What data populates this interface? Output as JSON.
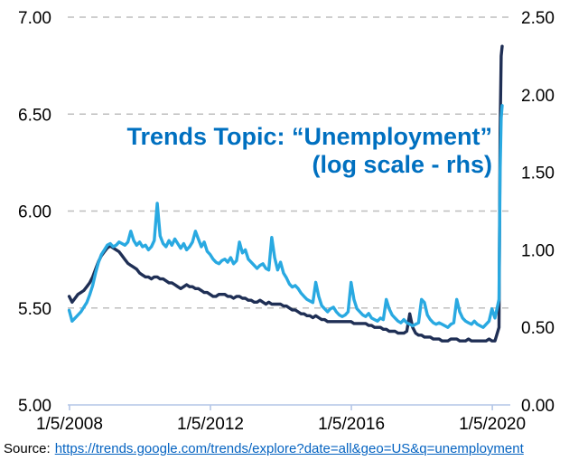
{
  "source_line": {
    "prefix": "Source:",
    "link_text": "https://trends.google.com/trends/explore?date=all&geo=US&q=unemployment"
  },
  "chart_data": {
    "type": "line",
    "title": "Trends Topic: “Unemployment” (log scale - rhs)",
    "title_line1": "Trends Topic: “Unemployment”",
    "title_line2": "(log scale - rhs)",
    "colors": {
      "title": "#0070C0",
      "grid": "#BEBEBE",
      "axis": "#B4C6E7",
      "tick_text": "#000000",
      "link": "#0563C1",
      "navy_series": "#1F2F55",
      "blue_series": "#29A9E1"
    },
    "grid": {
      "dashed": true,
      "at_left_tick_values": [
        5.5,
        6.0,
        6.5,
        7.0
      ]
    },
    "legend": "none",
    "x_axis": {
      "min": 2007.96,
      "max": 2020.52,
      "tick_values": [
        2008.01,
        2012.01,
        2016.01,
        2020.01
      ],
      "tick_labels": [
        "1/5/2008",
        "1/5/2012",
        "1/5/2016",
        "1/5/2020"
      ]
    },
    "left_axis": {
      "min": 5.0,
      "max": 7.0,
      "tick_values": [
        5.0,
        5.5,
        6.0,
        6.5,
        7.0
      ],
      "tick_labels": [
        "5.00",
        "5.50",
        "6.00",
        "6.50",
        "7.00"
      ]
    },
    "right_axis": {
      "min": 0.0,
      "max": 2.5,
      "tick_values": [
        0.0,
        0.5,
        1.0,
        1.5,
        2.0,
        2.5
      ],
      "tick_labels": [
        "0.00",
        "0.50",
        "1.00",
        "1.50",
        "2.00",
        "2.50"
      ]
    },
    "series": [
      {
        "id": "dark-navy-lhs",
        "axis": "left",
        "color": "#1F2F55",
        "monthly_start": 2008.0,
        "monthly_values": [
          5.56,
          5.53,
          5.55,
          5.57,
          5.58,
          5.59,
          5.61,
          5.63,
          5.66,
          5.7,
          5.74,
          5.77,
          5.79,
          5.81,
          5.82,
          5.81,
          5.8,
          5.79,
          5.77,
          5.75,
          5.73,
          5.72,
          5.71,
          5.7,
          5.68,
          5.67,
          5.66,
          5.66,
          5.65,
          5.66,
          5.66,
          5.65,
          5.65,
          5.64,
          5.63,
          5.63,
          5.62,
          5.61,
          5.6,
          5.61,
          5.62,
          5.61,
          5.61,
          5.6,
          5.6,
          5.59,
          5.58,
          5.58,
          5.57,
          5.56,
          5.56,
          5.57,
          5.57,
          5.57,
          5.56,
          5.56,
          5.55,
          5.56,
          5.56,
          5.55,
          5.55,
          5.54,
          5.54,
          5.53,
          5.53,
          5.54,
          5.53,
          5.52,
          5.53,
          5.52,
          5.52,
          5.52,
          5.52,
          5.51,
          5.51,
          5.5,
          5.49,
          5.49,
          5.48,
          5.47,
          5.47,
          5.46,
          5.46,
          5.45,
          5.46,
          5.45,
          5.44,
          5.44,
          5.43,
          5.43,
          5.43,
          5.43,
          5.43,
          5.43,
          5.43,
          5.43,
          5.43,
          5.42,
          5.42,
          5.42,
          5.42,
          5.42,
          5.41,
          5.41,
          5.4,
          5.4,
          5.4,
          5.39,
          5.39,
          5.38,
          5.38,
          5.38,
          5.37,
          5.37,
          5.37,
          5.38,
          5.47,
          5.4,
          5.37,
          5.36,
          5.36,
          5.35,
          5.35,
          5.35,
          5.34,
          5.34,
          5.34,
          5.33,
          5.33,
          5.33,
          5.34,
          5.34,
          5.34,
          5.33,
          5.33,
          5.33,
          5.34,
          5.33,
          5.33,
          5.33,
          5.33,
          5.33,
          5.33,
          5.34,
          5.33,
          5.33
        ],
        "extra_points": [
          [
            2020.2,
            5.4
          ],
          [
            2020.23,
            6.4
          ],
          [
            2020.26,
            6.8
          ],
          [
            2020.29,
            6.85
          ]
        ]
      },
      {
        "id": "light-blue-trends-rhs",
        "axis": "right",
        "color": "#29A9E1",
        "monthly_start": 2008.0,
        "monthly_values": [
          0.61,
          0.54,
          0.56,
          0.58,
          0.6,
          0.63,
          0.66,
          0.71,
          0.77,
          0.85,
          0.92,
          0.97,
          1.0,
          1.03,
          1.04,
          1.02,
          1.03,
          1.05,
          1.04,
          1.03,
          1.05,
          1.12,
          1.06,
          1.03,
          1.05,
          1.02,
          1.03,
          1.0,
          1.02,
          1.06,
          1.3,
          1.09,
          1.04,
          1.02,
          1.06,
          1.03,
          1.07,
          1.04,
          1.01,
          1.04,
          1.0,
          1.02,
          1.05,
          1.12,
          1.07,
          1.02,
          1.05,
          0.99,
          0.97,
          0.94,
          0.92,
          0.91,
          0.93,
          0.94,
          0.92,
          0.95,
          0.91,
          0.93,
          1.05,
          0.98,
          1.0,
          0.94,
          0.92,
          0.9,
          0.88,
          0.9,
          0.91,
          0.88,
          0.87,
          1.08,
          0.95,
          0.87,
          0.92,
          0.85,
          0.82,
          0.78,
          0.76,
          0.77,
          0.75,
          0.72,
          0.7,
          0.68,
          0.67,
          0.66,
          0.79,
          0.7,
          0.64,
          0.62,
          0.6,
          0.62,
          0.63,
          0.6,
          0.58,
          0.57,
          0.58,
          0.6,
          0.79,
          0.68,
          0.62,
          0.6,
          0.58,
          0.57,
          0.59,
          0.56,
          0.55,
          0.54,
          0.56,
          0.55,
          0.68,
          0.62,
          0.58,
          0.56,
          0.54,
          0.53,
          0.55,
          0.53,
          0.52,
          0.51,
          0.52,
          0.53,
          0.68,
          0.66,
          0.58,
          0.55,
          0.53,
          0.52,
          0.53,
          0.52,
          0.51,
          0.5,
          0.52,
          0.53,
          0.68,
          0.6,
          0.56,
          0.54,
          0.53,
          0.52,
          0.54,
          0.52,
          0.51,
          0.5,
          0.52,
          0.54,
          0.62,
          0.56
        ],
        "extra_points": [
          [
            2020.2,
            0.68
          ],
          [
            2020.23,
            1.5
          ],
          [
            2020.26,
            1.85
          ],
          [
            2020.29,
            1.93
          ]
        ]
      }
    ]
  }
}
